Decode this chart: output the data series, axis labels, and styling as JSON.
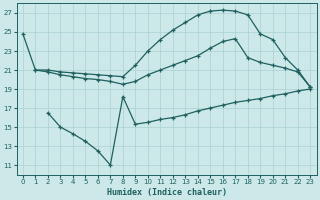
{
  "xlabel": "Humidex (Indice chaleur)",
  "xlim": [
    -0.5,
    23.5
  ],
  "ylim": [
    10,
    28
  ],
  "xticks": [
    0,
    1,
    2,
    3,
    4,
    5,
    6,
    7,
    8,
    9,
    10,
    11,
    12,
    13,
    14,
    15,
    16,
    17,
    18,
    19,
    20,
    21,
    22,
    23
  ],
  "yticks": [
    11,
    13,
    15,
    17,
    19,
    21,
    23,
    25,
    27
  ],
  "background_color": "#cce8e8",
  "grid_color": "#aad0d0",
  "line_color": "#206060",
  "line1_x": [
    0,
    1,
    2,
    3,
    4,
    5,
    6,
    7,
    8,
    9,
    10,
    11,
    12,
    13,
    14,
    15,
    16,
    17,
    18,
    19,
    20,
    21,
    22,
    23
  ],
  "line1_y": [
    24.8,
    21.0,
    21.0,
    20.8,
    20.7,
    20.6,
    20.5,
    20.4,
    20.3,
    21.5,
    23.0,
    24.2,
    25.2,
    26.0,
    26.8,
    27.2,
    27.3,
    27.2,
    26.8,
    24.8,
    24.2,
    22.3,
    21.0,
    19.2
  ],
  "line2_x": [
    1,
    2,
    3,
    4,
    5,
    6,
    7,
    8,
    9,
    10,
    11,
    12,
    13,
    14,
    15,
    16,
    17,
    18,
    19,
    20,
    21,
    22,
    23
  ],
  "line2_y": [
    21.0,
    20.8,
    20.5,
    20.3,
    20.1,
    20.0,
    19.8,
    19.5,
    19.8,
    20.5,
    21.0,
    21.5,
    22.0,
    22.5,
    23.3,
    24.0,
    24.3,
    22.3,
    21.8,
    21.5,
    21.2,
    20.8,
    19.2
  ],
  "line3_x": [
    2,
    3,
    4,
    5,
    6,
    7,
    8,
    9,
    10,
    11,
    12,
    13,
    14,
    15,
    16,
    17,
    18,
    19,
    20,
    21,
    22,
    23
  ],
  "line3_y": [
    16.5,
    15.0,
    14.3,
    13.5,
    12.5,
    11.0,
    18.2,
    15.3,
    15.5,
    15.8,
    16.0,
    16.3,
    16.7,
    17.0,
    17.3,
    17.6,
    17.8,
    18.0,
    18.3,
    18.5,
    18.8,
    19.0
  ]
}
